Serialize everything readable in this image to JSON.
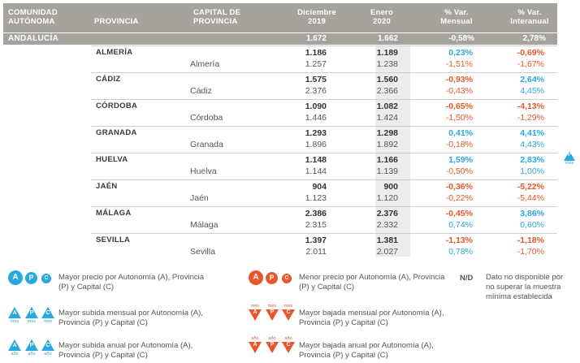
{
  "header": {
    "col_ca": "COMUNIDAD AUTÓNOMA",
    "col_prov": "PROVINCIA",
    "col_cap": "CAPITAL DE PROVINCIA",
    "col_dic": "Diciembre 2019",
    "col_ene": "Enero 2020",
    "col_mens": "% Var. Mensual",
    "col_inter": "% Var. Interanual"
  },
  "autonomia": {
    "name": "ANDALUCÍA",
    "dic": "1.672",
    "ene": "1.662",
    "mens": "-0,58%",
    "inter": "2,78%"
  },
  "provinces": [
    {
      "prov": "ALMERÍA",
      "cap": "Almería",
      "pd": "1.186",
      "pe": "1.189",
      "pm": "0,23%",
      "pi": "-0,69%",
      "cd": "1.257",
      "ce": "1.238",
      "cm": "-1,51%",
      "ci": "-1,67%"
    },
    {
      "prov": "CÁDIZ",
      "cap": "Cádiz",
      "pd": "1.575",
      "pe": "1.560",
      "pm": "-0,93%",
      "pi": "2,64%",
      "cd": "2.376",
      "ce": "2.366",
      "cm": "-0,43%",
      "ci": "4,45%"
    },
    {
      "prov": "CÓRDOBA",
      "cap": "Córdoba",
      "pd": "1.090",
      "pe": "1.082",
      "pm": "-0,65%",
      "pi": "-4,13%",
      "cd": "1.446",
      "ce": "1.424",
      "cm": "-1,50%",
      "ci": "-1,29%"
    },
    {
      "prov": "GRANADA",
      "cap": "Granada",
      "pd": "1.293",
      "pe": "1.298",
      "pm": "0,41%",
      "pi": "4,41%",
      "cd": "1.896",
      "ce": "1.892",
      "cm": "-0,18%",
      "ci": "4,43%"
    },
    {
      "prov": "HUELVA",
      "cap": "Huelva",
      "pd": "1.148",
      "pe": "1.166",
      "pm": "1,59%",
      "pi": "2,83%",
      "cd": "1.144",
      "ce": "1.139",
      "cm": "-0,50%",
      "ci": "1,00%"
    },
    {
      "prov": "JAÉN",
      "cap": "Jaén",
      "pd": "904",
      "pe": "900",
      "pm": "-0,36%",
      "pi": "-5,22%",
      "cd": "1.123",
      "ce": "1.120",
      "cm": "-0,22%",
      "ci": "-5,44%"
    },
    {
      "prov": "MÁLAGA",
      "cap": "Málaga",
      "pd": "2.386",
      "pe": "2.376",
      "pm": "-0,45%",
      "pi": "3,86%",
      "cd": "2.315",
      "ce": "2.332",
      "cm": "0,74%",
      "ci": "0,60%"
    },
    {
      "prov": "SEVILLA",
      "cap": "Sevilla",
      "pd": "1.397",
      "pe": "1.381",
      "pm": "-1,13%",
      "pi": "-1,18%",
      "cd": "2.011",
      "ce": "2.027",
      "cm": "0,78%",
      "ci": "-1,70%"
    }
  ],
  "side_marker": {
    "letter": "P",
    "sub": "mes"
  },
  "legend": {
    "max_price": "Mayor precio por Autonomía (A), Provincia (P) y Capital (C)",
    "min_price": "Menor precio por Autonomía (A), Provincia (P) y Capital (C)",
    "nd_code": "N/D",
    "nd_text": "Dato no disponible por no superar la muestra mínima establecida",
    "max_month": "Mayor subida mensual por Autonomía (A), Provincia (P) y Capital (C)",
    "min_month": "Mayor bajada mensual por Autonomía (A), Provincia (P) y Capital (C)",
    "max_year": "Mayor subida anual por Autonomía (A), Provincia (P) y Capital (C)",
    "min_year": "Mayor bajada anual por Autonomía (A), Provincia (P) y Capital (C)",
    "letter_a": "A",
    "letter_p": "P",
    "letter_c": "C",
    "mes": "mes",
    "ano": "año"
  },
  "colors": {
    "header_bg": "#a5a39c",
    "positive": "#29a8df",
    "negative": "#e8572a",
    "shade": "#ececea"
  }
}
